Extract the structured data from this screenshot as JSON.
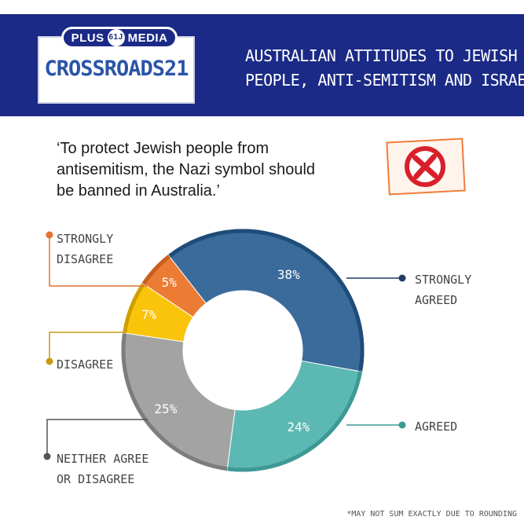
{
  "header": {
    "logo_pill_left": "PLUS",
    "logo_pill_badge": "61J",
    "logo_pill_right": "MEDIA",
    "logo_main": "CROSSROADS21",
    "title_lines": [
      "AUSTRALIAN ATTITUDES TO JEWISH",
      "PEOPLE, ANTI-SEMITISM AND ISRAEL"
    ]
  },
  "question_lines": [
    "‘To protect Jewish people from",
    "antisemitism, the Nazi symbol should",
    "be banned in Australia.’"
  ],
  "stamp_icon": "crossed-circle-icon",
  "footnote": "*MAY NOT SUM EXACTLY DUE TO ROUNDING",
  "colors": {
    "header_bg": "#1b2a86",
    "strongly_agreed": "#3a6b9b",
    "agreed": "#5cb8b2",
    "neither": "#a3a3a3",
    "disagree": "#f9c40a",
    "strongly_disagree": "#ec7b34",
    "stamp_red": "#d9202a"
  },
  "chart_data": {
    "type": "pie",
    "style": "donut",
    "unit": "%",
    "slices": [
      {
        "label_lines": [
          "STRONGLY",
          "AGREED"
        ],
        "value": 38,
        "display": "38%",
        "color": "#3a6b9b",
        "edge": "#1f4c78",
        "dot": "#1f3c64"
      },
      {
        "label_lines": [
          "AGREED"
        ],
        "value": 24,
        "display": "24%",
        "color": "#5cb8b2",
        "edge": "#3c9993",
        "dot": "#3c9993"
      },
      {
        "label_lines": [
          "NEITHER AGREE",
          "OR DISAGREE"
        ],
        "value": 25,
        "display": "25%",
        "color": "#a3a3a3",
        "edge": "#7d7d7d",
        "dot": "#555555"
      },
      {
        "label_lines": [
          "DISAGREE"
        ],
        "value": 7,
        "display": "7%",
        "color": "#f9c40a",
        "edge": "#cf9f00",
        "dot": "#c79a12"
      },
      {
        "label_lines": [
          "STRONGLY",
          "DISAGREE"
        ],
        "value": 5,
        "display": "5%",
        "color": "#ec7b34",
        "edge": "#c75f20",
        "dot": "#e27230"
      }
    ]
  }
}
